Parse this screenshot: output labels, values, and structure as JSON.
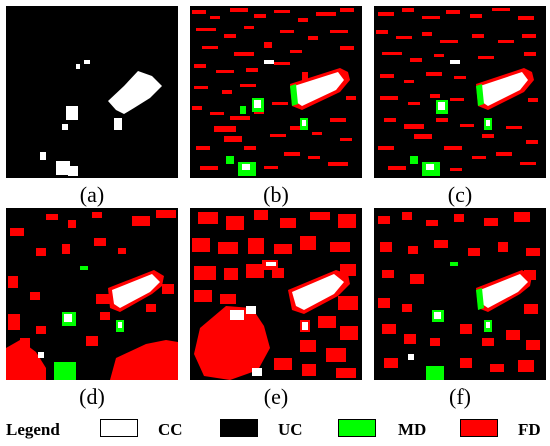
{
  "panels": [
    {
      "caption": "(a)"
    },
    {
      "caption": "(b)"
    },
    {
      "caption": "(c)"
    },
    {
      "caption": "(d)"
    },
    {
      "caption": "(e)"
    },
    {
      "caption": "(f)"
    }
  ],
  "legend": {
    "title": "Legend",
    "items": [
      {
        "label": "CC",
        "color": "#ffffff"
      },
      {
        "label": "UC",
        "color": "#000000"
      },
      {
        "label": "MD",
        "color": "#00ff00"
      },
      {
        "label": "FD",
        "color": "#ff0000"
      }
    ]
  }
}
